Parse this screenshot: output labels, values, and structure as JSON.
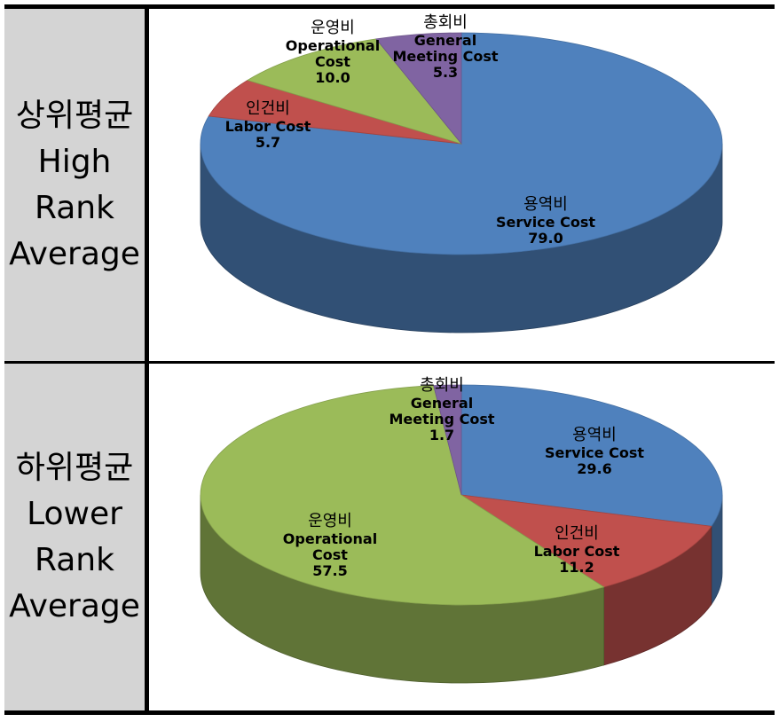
{
  "rows": [
    {
      "label": [
        "상위평균",
        "High",
        "Rank",
        "Average"
      ]
    },
    {
      "label": [
        "하위평균",
        "Lower",
        "Rank",
        "Average"
      ]
    }
  ],
  "colors": {
    "service": "#4f81bd",
    "labor": "#c0504d",
    "operational": "#9bbb59",
    "general": "#8064a2"
  },
  "chart_data": [
    {
      "type": "pie",
      "title": "",
      "slices": [
        {
          "key": "service",
          "label": [
            "용역비",
            "Service Cost"
          ],
          "value": 79.0,
          "display": "79.0"
        },
        {
          "key": "labor",
          "label": [
            "인건비",
            "Labor Cost"
          ],
          "value": 5.7,
          "display": "5.7"
        },
        {
          "key": "operational",
          "label": [
            "운영비",
            "Operational",
            "Cost"
          ],
          "value": 10.0,
          "display": "10.0"
        },
        {
          "key": "general",
          "label": [
            "총회비",
            "General",
            "Meeting Cost"
          ],
          "value": 5.3,
          "display": "5.3"
        }
      ]
    },
    {
      "type": "pie",
      "title": "",
      "slices": [
        {
          "key": "service",
          "label": [
            "용역비",
            "Service Cost"
          ],
          "value": 29.6,
          "display": "29.6"
        },
        {
          "key": "labor",
          "label": [
            "인건비",
            "Labor Cost"
          ],
          "value": 11.2,
          "display": "11.2"
        },
        {
          "key": "operational",
          "label": [
            "운영비",
            "Operational",
            "Cost"
          ],
          "value": 57.5,
          "display": "57.5"
        },
        {
          "key": "general",
          "label": [
            "총회비",
            "General",
            "Meeting Cost"
          ],
          "value": 1.7,
          "display": "1.7"
        }
      ]
    }
  ]
}
